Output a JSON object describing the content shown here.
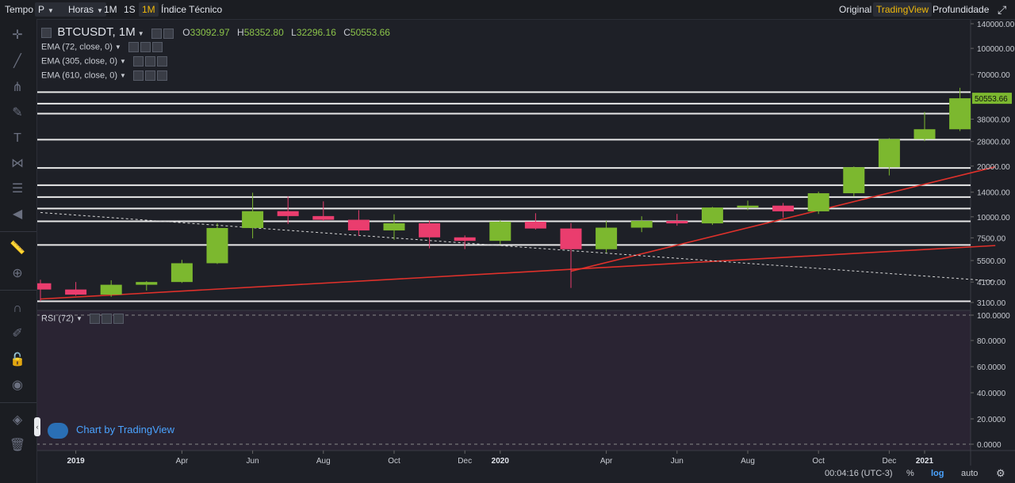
{
  "toolbar": {
    "tempo_label": "Tempo",
    "period_select": "P",
    "hours_label": "Horas",
    "interval_1m": "1M",
    "interval_1s": "1S",
    "interval_1M_active": "1M",
    "technical_index": "Índice Técnico",
    "view_original": "Original",
    "view_tradingview": "TradingView",
    "view_depth": "Profundidade"
  },
  "colors": {
    "background": "#1e2027",
    "up": "#7cb82f",
    "down": "#ea3d6e",
    "horizontal_lines": "#e8e8e8",
    "trend_lines": "#e0312b",
    "accent": "#f0b90b",
    "link": "#4aa3ff",
    "rsi_background": "#2a2433"
  },
  "legend": {
    "symbol": "BTCUSDT, 1M",
    "open_label": "O",
    "open": "33092.97",
    "high_label": "H",
    "high": "58352.80",
    "low_label": "L",
    "low": "32296.16",
    "close_label": "C",
    "close": "50553.66",
    "ema1": "EMA (72, close, 0)",
    "ema2": "EMA (305, close, 0)",
    "ema3": "EMA (610, close, 0)",
    "rsi": "RSI (72)"
  },
  "watermark": "Chart by TradingView",
  "bottom": {
    "time": "00:04:16 (UTC-3)",
    "percent": "%",
    "log": "log",
    "auto": "auto"
  },
  "sidebar_icons": [
    "crosshair-icon",
    "trend-line-icon",
    "pitchfork-icon",
    "brush-icon",
    "text-icon",
    "pattern-icon",
    "fib-icon",
    "back-arrow-icon",
    "ruler-icon",
    "zoom-in-icon",
    "magnet-icon",
    "lock-drawing-icon",
    "lock-icon",
    "eye-icon",
    "layers-icon",
    "trash-icon"
  ],
  "chart_data": {
    "type": "candlestick",
    "scale": "log",
    "y_ticks": [
      3100,
      4100,
      5500,
      7500,
      10000,
      14000,
      20000,
      28000,
      38000,
      50553.66,
      70000,
      100000,
      140000
    ],
    "y_tick_labels": [
      "3100.00",
      "4100.00",
      "5500.00",
      "7500.00",
      "10000.00",
      "14000.00",
      "20000.00",
      "28000.00",
      "38000.00",
      "50553.66",
      "70000.00",
      "100000.00",
      "140000.00"
    ],
    "last_price_label": "50553.66",
    "x_labels": [
      "2019",
      "Apr",
      "Jun",
      "Aug",
      "Oct",
      "Dec",
      "2020",
      "Apr",
      "Jun",
      "Aug",
      "Oct",
      "Dec",
      "2021"
    ],
    "candles": [
      {
        "d": "2018-12",
        "o": 4030,
        "h": 4230,
        "l": 3155,
        "c": 3700
      },
      {
        "d": "2019-01",
        "o": 3700,
        "h": 4100,
        "l": 3400,
        "c": 3450
      },
      {
        "d": "2019-02",
        "o": 3450,
        "h": 4200,
        "l": 3350,
        "c": 3950
      },
      {
        "d": "2019-03",
        "o": 3950,
        "h": 4150,
        "l": 3650,
        "c": 4100
      },
      {
        "d": "2019-04",
        "o": 4100,
        "h": 5550,
        "l": 4050,
        "c": 5300
      },
      {
        "d": "2019-05",
        "o": 5300,
        "h": 9150,
        "l": 5250,
        "c": 8580
      },
      {
        "d": "2019-06",
        "o": 8580,
        "h": 13900,
        "l": 7450,
        "c": 10800
      },
      {
        "d": "2019-07",
        "o": 10800,
        "h": 13200,
        "l": 9050,
        "c": 10100
      },
      {
        "d": "2019-08",
        "o": 10100,
        "h": 12350,
        "l": 9450,
        "c": 9600
      },
      {
        "d": "2019-09",
        "o": 9600,
        "h": 10950,
        "l": 7710,
        "c": 8300
      },
      {
        "d": "2019-10",
        "o": 8300,
        "h": 10350,
        "l": 7300,
        "c": 9150
      },
      {
        "d": "2019-11",
        "o": 9150,
        "h": 9500,
        "l": 6500,
        "c": 7550
      },
      {
        "d": "2019-12",
        "o": 7550,
        "h": 7750,
        "l": 6430,
        "c": 7200
      },
      {
        "d": "2020-01",
        "o": 7200,
        "h": 9570,
        "l": 6850,
        "c": 9350
      },
      {
        "d": "2020-02",
        "o": 9350,
        "h": 10500,
        "l": 8400,
        "c": 8520
      },
      {
        "d": "2020-03",
        "o": 8520,
        "h": 9180,
        "l": 3780,
        "c": 6420
      },
      {
        "d": "2020-04",
        "o": 6420,
        "h": 9450,
        "l": 6150,
        "c": 8620
      },
      {
        "d": "2020-05",
        "o": 8620,
        "h": 10070,
        "l": 8110,
        "c": 9450
      },
      {
        "d": "2020-06",
        "o": 9450,
        "h": 10400,
        "l": 8850,
        "c": 9140
      },
      {
        "d": "2020-07",
        "o": 9140,
        "h": 11450,
        "l": 8950,
        "c": 11350
      },
      {
        "d": "2020-08",
        "o": 11350,
        "h": 12480,
        "l": 10950,
        "c": 11650
      },
      {
        "d": "2020-09",
        "o": 11650,
        "h": 12080,
        "l": 9880,
        "c": 10780
      },
      {
        "d": "2020-10",
        "o": 10780,
        "h": 14100,
        "l": 10400,
        "c": 13800
      },
      {
        "d": "2020-11",
        "o": 13800,
        "h": 19900,
        "l": 13200,
        "c": 19700
      },
      {
        "d": "2020-12",
        "o": 19700,
        "h": 29300,
        "l": 17600,
        "c": 28950
      },
      {
        "d": "2021-01",
        "o": 28950,
        "h": 41950,
        "l": 28130,
        "c": 33100
      },
      {
        "d": "2021-02",
        "o": 33092.97,
        "h": 58352.8,
        "l": 32296.16,
        "c": 50553.66
      }
    ],
    "horizontal_levels": [
      3150,
      6800,
      9400,
      11200,
      13100,
      15400,
      19500,
      28700,
      41000,
      47000,
      55000
    ],
    "trend_lines": [
      {
        "from": [
          "2018-12",
          3250
        ],
        "to": [
          "2021-03",
          6750
        ]
      },
      {
        "from": [
          "2020-03",
          4750
        ],
        "to": [
          "2021-03",
          19800
        ]
      }
    ],
    "dashed_line": {
      "from": [
        "2018-12",
        10600
      ],
      "to": [
        "2021-03",
        4150
      ]
    },
    "rsi_ticks": [
      "100.0000",
      "80.0000",
      "60.0000",
      "40.0000",
      "20.0000",
      "0.0000"
    ]
  }
}
